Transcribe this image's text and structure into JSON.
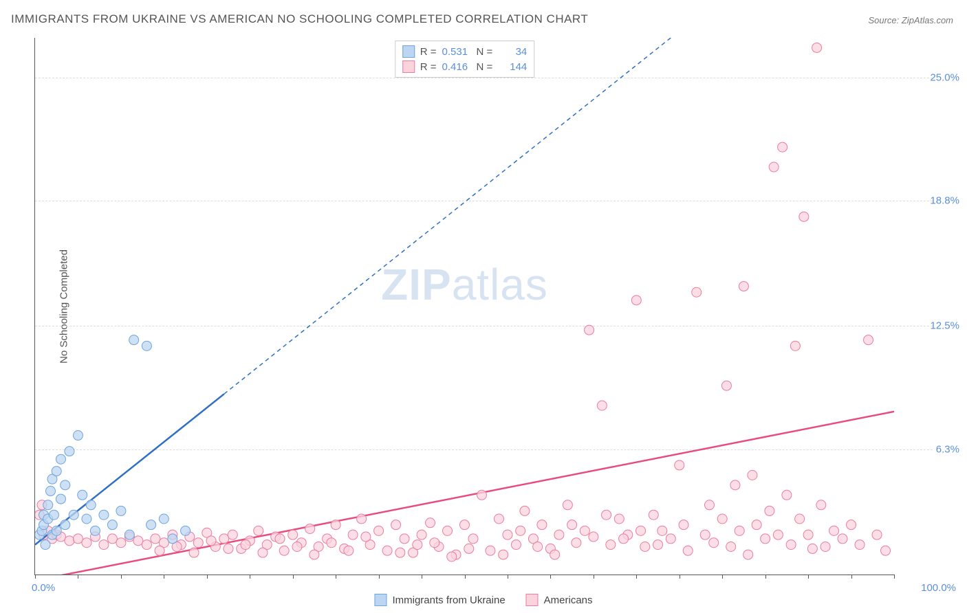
{
  "title": "IMMIGRANTS FROM UKRAINE VS AMERICAN NO SCHOOLING COMPLETED CORRELATION CHART",
  "source_label": "Source: ZipAtlas.com",
  "watermark": {
    "bold": "ZIP",
    "light": "atlas"
  },
  "chart": {
    "type": "scatter",
    "background_color": "#ffffff",
    "grid_color": "#dddddd",
    "axis_color": "#555555",
    "xlim": [
      0,
      100
    ],
    "ylim": [
      0,
      27
    ],
    "y_label": "No Schooling Completed",
    "y_label_fontsize": 15,
    "y_ticks": [
      6.3,
      12.5,
      18.8,
      25.0
    ],
    "y_tick_labels": [
      "6.3%",
      "12.5%",
      "18.8%",
      "25.0%"
    ],
    "x_tick_positions": [
      0,
      5,
      10,
      15,
      20,
      25,
      30,
      35,
      40,
      45,
      50,
      55,
      60,
      65,
      70,
      75,
      80,
      85,
      90,
      95,
      100
    ],
    "x_min_label": "0.0%",
    "x_max_label": "100.0%",
    "tick_label_color": "#5b8fd6",
    "tick_label_fontsize": 15,
    "series": [
      {
        "name": "Immigrants from Ukraine",
        "marker_color_fill": "#bcd5f0",
        "marker_color_stroke": "#6ea3de",
        "marker_radius": 7,
        "marker_opacity": 0.75,
        "line_color": "#2e6fc4",
        "line_width": 2.5,
        "line_dash_after_x": 22,
        "line_start": [
          0,
          1.5
        ],
        "line_end": [
          74,
          27
        ],
        "r_value": "0.531",
        "n_value": "34",
        "points": [
          [
            0.5,
            2.0
          ],
          [
            0.8,
            2.2
          ],
          [
            1.0,
            2.5
          ],
          [
            1.0,
            3.0
          ],
          [
            1.2,
            1.5
          ],
          [
            1.5,
            2.8
          ],
          [
            1.5,
            3.5
          ],
          [
            1.8,
            4.2
          ],
          [
            2.0,
            2.0
          ],
          [
            2.0,
            4.8
          ],
          [
            2.2,
            3.0
          ],
          [
            2.5,
            5.2
          ],
          [
            2.5,
            2.2
          ],
          [
            3.0,
            3.8
          ],
          [
            3.0,
            5.8
          ],
          [
            3.5,
            4.5
          ],
          [
            3.5,
            2.5
          ],
          [
            4.0,
            6.2
          ],
          [
            4.5,
            3.0
          ],
          [
            5.0,
            7.0
          ],
          [
            5.5,
            4.0
          ],
          [
            6.0,
            2.8
          ],
          [
            6.5,
            3.5
          ],
          [
            7.0,
            2.2
          ],
          [
            8.0,
            3.0
          ],
          [
            9.0,
            2.5
          ],
          [
            10.0,
            3.2
          ],
          [
            11.0,
            2.0
          ],
          [
            11.5,
            11.8
          ],
          [
            13.0,
            11.5
          ],
          [
            13.5,
            2.5
          ],
          [
            15.0,
            2.8
          ],
          [
            16.0,
            1.8
          ],
          [
            17.5,
            2.2
          ]
        ]
      },
      {
        "name": "Americans",
        "marker_color_fill": "#fbd3dd",
        "marker_color_stroke": "#ea7ba1",
        "marker_radius": 7,
        "marker_opacity": 0.75,
        "line_color": "#e84b7e",
        "line_width": 2.5,
        "line_start": [
          0,
          -0.3
        ],
        "line_end": [
          100,
          8.2
        ],
        "r_value": "0.416",
        "n_value": "144",
        "points": [
          [
            0.5,
            3.0
          ],
          [
            0.8,
            3.5
          ],
          [
            1.0,
            2.0
          ],
          [
            1.5,
            2.2
          ],
          [
            2.0,
            1.8
          ],
          [
            2.5,
            2.0
          ],
          [
            3.0,
            1.9
          ],
          [
            4.0,
            1.7
          ],
          [
            5.0,
            1.8
          ],
          [
            6.0,
            1.6
          ],
          [
            7.0,
            1.9
          ],
          [
            8.0,
            1.5
          ],
          [
            9.0,
            1.8
          ],
          [
            10.0,
            1.6
          ],
          [
            11.0,
            1.9
          ],
          [
            12.0,
            1.7
          ],
          [
            13.0,
            1.5
          ],
          [
            14.0,
            1.8
          ],
          [
            15.0,
            1.6
          ],
          [
            16.0,
            2.0
          ],
          [
            17.0,
            1.5
          ],
          [
            18.0,
            1.9
          ],
          [
            19.0,
            1.6
          ],
          [
            20.0,
            2.1
          ],
          [
            21.0,
            1.4
          ],
          [
            22.0,
            1.8
          ],
          [
            23.0,
            2.0
          ],
          [
            24.0,
            1.3
          ],
          [
            25.0,
            1.7
          ],
          [
            26.0,
            2.2
          ],
          [
            27.0,
            1.5
          ],
          [
            28.0,
            1.9
          ],
          [
            29.0,
            1.2
          ],
          [
            30.0,
            2.0
          ],
          [
            31.0,
            1.6
          ],
          [
            32.0,
            2.3
          ],
          [
            33.0,
            1.4
          ],
          [
            34.0,
            1.8
          ],
          [
            35.0,
            2.5
          ],
          [
            36.0,
            1.3
          ],
          [
            37.0,
            2.0
          ],
          [
            38.0,
            2.8
          ],
          [
            39.0,
            1.5
          ],
          [
            40.0,
            2.2
          ],
          [
            41.0,
            1.2
          ],
          [
            42.0,
            2.5
          ],
          [
            43.0,
            1.8
          ],
          [
            44.0,
            1.1
          ],
          [
            45.0,
            2.0
          ],
          [
            46.0,
            2.6
          ],
          [
            47.0,
            1.4
          ],
          [
            48.0,
            2.2
          ],
          [
            49.0,
            1.0
          ],
          [
            50.0,
            2.5
          ],
          [
            51.0,
            1.8
          ],
          [
            52.0,
            4.0
          ],
          [
            53.0,
            1.2
          ],
          [
            54.0,
            2.8
          ],
          [
            55.0,
            2.0
          ],
          [
            56.0,
            1.5
          ],
          [
            57.0,
            3.2
          ],
          [
            58.0,
            1.8
          ],
          [
            59.0,
            2.5
          ],
          [
            60.0,
            1.3
          ],
          [
            61.0,
            2.0
          ],
          [
            62.0,
            3.5
          ],
          [
            63.0,
            1.6
          ],
          [
            64.0,
            2.2
          ],
          [
            65.0,
            1.9
          ],
          [
            66.0,
            8.5
          ],
          [
            67.0,
            1.5
          ],
          [
            68.0,
            2.8
          ],
          [
            69.0,
            2.0
          ],
          [
            70.0,
            13.8
          ],
          [
            71.0,
            1.4
          ],
          [
            72.0,
            3.0
          ],
          [
            73.0,
            2.2
          ],
          [
            74.0,
            1.8
          ],
          [
            75.0,
            5.5
          ],
          [
            75.5,
            2.5
          ],
          [
            76.0,
            1.2
          ],
          [
            77.0,
            14.2
          ],
          [
            78.0,
            2.0
          ],
          [
            78.5,
            3.5
          ],
          [
            79.0,
            1.6
          ],
          [
            80.0,
            2.8
          ],
          [
            80.5,
            9.5
          ],
          [
            81.0,
            1.4
          ],
          [
            81.5,
            4.5
          ],
          [
            82.0,
            2.2
          ],
          [
            82.5,
            14.5
          ],
          [
            83.0,
            1.0
          ],
          [
            83.5,
            5.0
          ],
          [
            84.0,
            2.5
          ],
          [
            85.0,
            1.8
          ],
          [
            85.5,
            3.2
          ],
          [
            86.0,
            20.5
          ],
          [
            86.5,
            2.0
          ],
          [
            87.0,
            21.5
          ],
          [
            87.5,
            4.0
          ],
          [
            88.0,
            1.5
          ],
          [
            88.5,
            11.5
          ],
          [
            89.0,
            2.8
          ],
          [
            89.5,
            18.0
          ],
          [
            90.0,
            2.0
          ],
          [
            90.5,
            1.3
          ],
          [
            91.0,
            26.5
          ],
          [
            91.5,
            3.5
          ],
          [
            92.0,
            1.4
          ],
          [
            93.0,
            2.2
          ],
          [
            94.0,
            1.8
          ],
          [
            95.0,
            2.5
          ],
          [
            96.0,
            1.5
          ],
          [
            97.0,
            11.8
          ],
          [
            98.0,
            2.0
          ],
          [
            99.0,
            1.2
          ],
          [
            60.5,
            1.0
          ],
          [
            62.5,
            2.5
          ],
          [
            64.5,
            12.3
          ],
          [
            66.5,
            3.0
          ],
          [
            68.5,
            1.8
          ],
          [
            70.5,
            2.2
          ],
          [
            72.5,
            1.5
          ],
          [
            54.5,
            1.0
          ],
          [
            56.5,
            2.2
          ],
          [
            58.5,
            1.4
          ],
          [
            46.5,
            1.6
          ],
          [
            48.5,
            0.9
          ],
          [
            50.5,
            1.3
          ],
          [
            42.5,
            1.1
          ],
          [
            44.5,
            1.5
          ],
          [
            38.5,
            1.9
          ],
          [
            36.5,
            1.2
          ],
          [
            34.5,
            1.6
          ],
          [
            32.5,
            1.0
          ],
          [
            30.5,
            1.4
          ],
          [
            28.5,
            1.8
          ],
          [
            26.5,
            1.1
          ],
          [
            24.5,
            1.5
          ],
          [
            22.5,
            1.3
          ],
          [
            20.5,
            1.7
          ],
          [
            18.5,
            1.1
          ],
          [
            16.5,
            1.4
          ],
          [
            14.5,
            1.2
          ]
        ]
      }
    ]
  },
  "legend_top": {
    "border_color": "#cccccc",
    "r_label": "R =",
    "n_label": "N ="
  },
  "legend_bottom": {
    "series1_label": "Immigrants from Ukraine",
    "series2_label": "Americans"
  }
}
